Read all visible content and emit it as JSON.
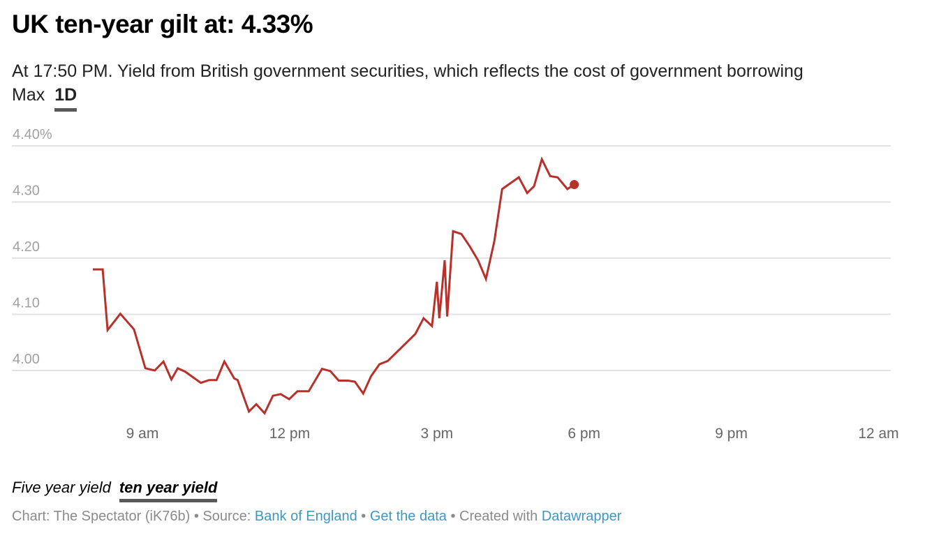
{
  "header": {
    "title": "UK ten-year gilt at: 4.33%",
    "subtitle": "At 17:50 PM. Yield from British government securities, which reflects the cost of government borrowing"
  },
  "range_tabs": [
    {
      "label": "Max",
      "active": false
    },
    {
      "label": "1D",
      "active": true
    }
  ],
  "series_tabs": [
    {
      "label": "Five year yield",
      "active": false
    },
    {
      "label": "ten year yield",
      "active": true
    }
  ],
  "footer": {
    "chart_prefix": "Chart: The Spectator (iK76b)",
    "sep1": " • Source: ",
    "source_link": "Bank of England",
    "sep2": " • ",
    "data_link": "Get the data",
    "sep3": " • Created with ",
    "tool_link": "Datawrapper"
  },
  "colors": {
    "line": "#b8302a",
    "grid": "#e3e3e3",
    "link": "#3e97c2"
  },
  "chart_data": {
    "type": "line",
    "title": "UK ten-year gilt at: 4.33%",
    "xlabel": "",
    "ylabel": "",
    "ylim": [
      3.9,
      4.4
    ],
    "xlim_hours": [
      7.0,
      24.0
    ],
    "grid": true,
    "y_ticks": [
      {
        "value": 4.4,
        "label": "4.40%"
      },
      {
        "value": 4.3,
        "label": "4.30"
      },
      {
        "value": 4.2,
        "label": "4.20"
      },
      {
        "value": 4.1,
        "label": "4.10"
      },
      {
        "value": 4.0,
        "label": "4.00"
      }
    ],
    "x_ticks": [
      {
        "hour": 9,
        "label": "9 am"
      },
      {
        "hour": 12,
        "label": "12 pm"
      },
      {
        "hour": 15,
        "label": "3 pm"
      },
      {
        "hour": 18,
        "label": "6 pm"
      },
      {
        "hour": 21,
        "label": "9 pm"
      },
      {
        "hour": 24,
        "label": "12 am"
      }
    ],
    "series": [
      {
        "name": "ten year yield",
        "last_value_marker": true,
        "x_hours": [
          7.99,
          8.19,
          8.29,
          8.55,
          8.83,
          9.06,
          9.25,
          9.43,
          9.59,
          9.72,
          9.87,
          10.0,
          10.19,
          10.36,
          10.51,
          10.67,
          10.87,
          10.94,
          11.17,
          11.32,
          11.49,
          11.66,
          11.82,
          11.99,
          12.16,
          12.39,
          12.66,
          12.83,
          13.0,
          13.19,
          13.33,
          13.5,
          13.66,
          13.83,
          14.0,
          14.56,
          14.73,
          14.9,
          15.05,
          15.21,
          15.0,
          15.16,
          15.33,
          15.5,
          15.67,
          15.84,
          16.0,
          16.17,
          16.33,
          16.67,
          16.84,
          16.98,
          17.14,
          17.31,
          17.46,
          17.66,
          17.8
        ],
        "values": [
          4.18,
          4.18,
          4.072,
          4.101,
          4.073,
          4.004,
          4.0,
          4.016,
          3.984,
          4.004,
          3.998,
          3.99,
          3.978,
          3.983,
          3.983,
          4.016,
          3.986,
          3.983,
          3.927,
          3.94,
          3.924,
          3.955,
          3.958,
          3.949,
          3.963,
          3.963,
          4.003,
          3.999,
          3.982,
          3.982,
          3.98,
          3.959,
          3.99,
          4.011,
          4.017,
          4.065,
          4.093,
          4.079,
          4.093,
          4.096,
          4.158,
          4.196,
          4.248,
          4.243,
          4.221,
          4.196,
          4.163,
          4.23,
          4.323,
          4.344,
          4.316,
          4.328,
          4.376,
          4.346,
          4.344,
          4.323,
          4.331
        ]
      }
    ]
  }
}
